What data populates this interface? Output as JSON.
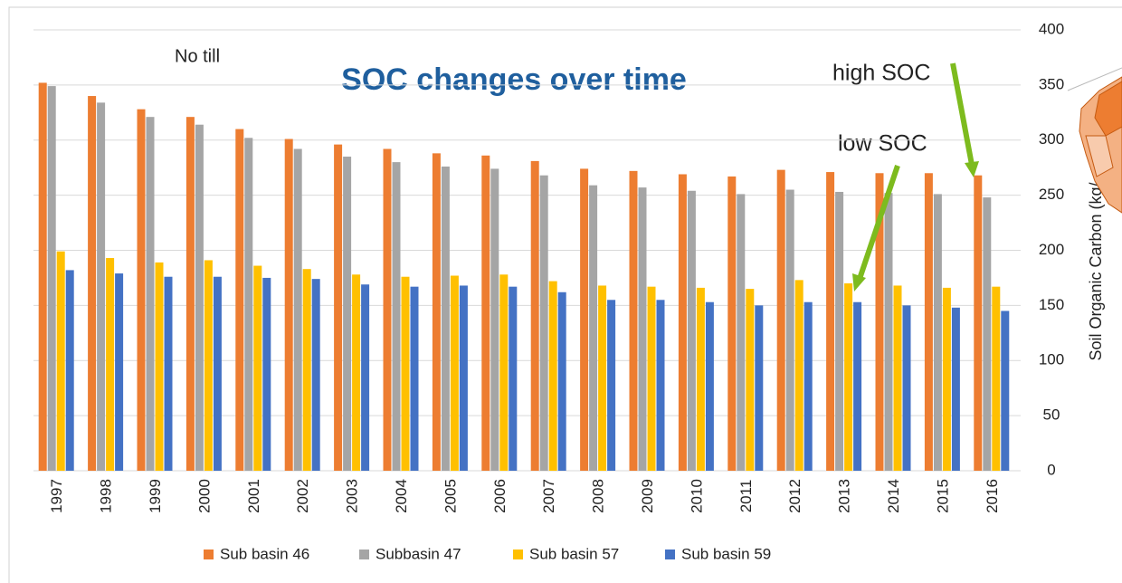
{
  "chart_data": {
    "type": "bar",
    "title": "SOC changes over time",
    "y_label": "Soil Organic Carbon (kg/",
    "annotations": [
      "No till",
      "high SOC",
      "low SOC"
    ],
    "categories": [
      "1997",
      "1998",
      "1999",
      "2000",
      "2001",
      "2002",
      "2003",
      "2004",
      "2005",
      "2006",
      "2007",
      "2008",
      "2009",
      "2010",
      "2011",
      "2012",
      "2013",
      "2014",
      "2015",
      "2016"
    ],
    "series": [
      {
        "name": "Sub basin 46",
        "color": "#ed7d31",
        "values": [
          352,
          340,
          328,
          321,
          310,
          301,
          296,
          292,
          288,
          286,
          281,
          274,
          272,
          269,
          267,
          273,
          271,
          270,
          270,
          268
        ]
      },
      {
        "name": "Subbasin 47",
        "color": "#a5a5a5",
        "values": [
          349,
          334,
          321,
          314,
          302,
          292,
          285,
          280,
          276,
          274,
          268,
          259,
          257,
          254,
          251,
          255,
          253,
          252,
          251,
          248
        ]
      },
      {
        "name": "Sub basin 57",
        "color": "#ffc000",
        "values": [
          199,
          193,
          189,
          191,
          186,
          183,
          178,
          176,
          177,
          178,
          172,
          168,
          167,
          166,
          165,
          173,
          170,
          168,
          166,
          167
        ]
      },
      {
        "name": "Sub basin 59",
        "color": "#4472c4",
        "values": [
          182,
          179,
          176,
          176,
          175,
          174,
          169,
          167,
          168,
          167,
          162,
          155,
          155,
          153,
          150,
          153,
          153,
          150,
          148,
          145
        ]
      }
    ],
    "ylim": [
      0,
      400
    ],
    "yticks": [
      0,
      50,
      100,
      150,
      200,
      250,
      300,
      350,
      400
    ],
    "grid": true,
    "legend": "bottom"
  }
}
